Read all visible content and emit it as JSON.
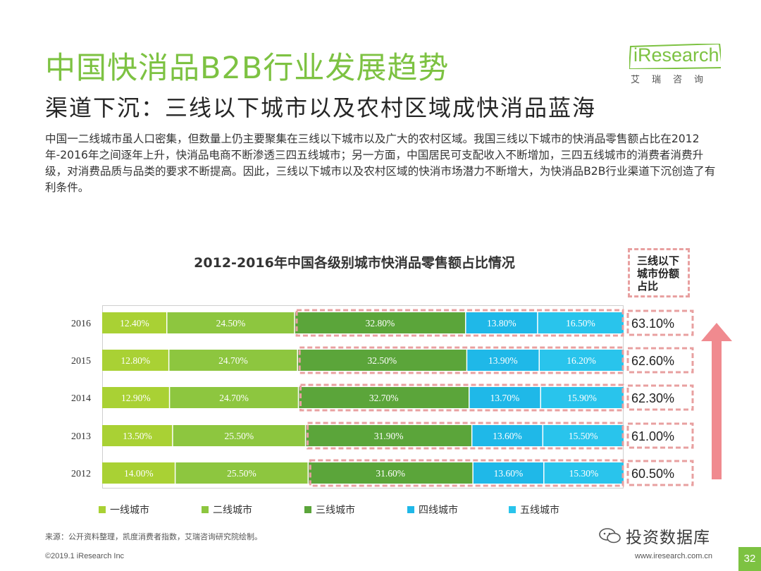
{
  "header": {
    "title": "中国快消品B2B行业发展趋势",
    "subtitle": "渠道下沉：三线以下城市以及农村区域成快消品蓝海",
    "intro": "中国一二线城市虽人口密集，但数量上仍主要聚集在三线以下城市以及广大的农村区域。我国三线以下城市的快消品零售额占比在2012年-2016年之间逐年上升，快消品电商不断渗透三四五线城市；另一方面，中国居民可支配收入不断增加，三四五线城市的消费者消费升级，对消费品质与品类的要求不断提高。因此，三线以下城市以及农村区域的快消市场潜力不断增大，为快消品B2B行业渠道下沉创造了有利条件。"
  },
  "logo": {
    "text": "iResearch",
    "cn": "艾瑞咨询"
  },
  "share_header": "三线以下城市份额占比",
  "colors": {
    "tier1": "#a9d134",
    "tier2": "#8dc63f",
    "tier3": "#5ba53a",
    "tier4": "#1fb8e8",
    "tier5": "#29c4ec",
    "accent": "#7dc242",
    "dash": "#e8a0a0",
    "arrow": "#f08a8f"
  },
  "chart_data": {
    "type": "bar",
    "orientation": "horizontal",
    "stacked": true,
    "percent": true,
    "title": "2012-2016年中国各级别城市快消品零售额占比情况",
    "categories": [
      "2016",
      "2015",
      "2014",
      "2013",
      "2012"
    ],
    "series": [
      {
        "name": "一线城市",
        "values": [
          12.4,
          12.8,
          12.9,
          13.5,
          14.0
        ],
        "labels": [
          "12.40%",
          "12.80%",
          "12.90%",
          "13.50%",
          "14.00%"
        ]
      },
      {
        "name": "二线城市",
        "values": [
          24.5,
          24.7,
          24.7,
          25.5,
          25.5
        ],
        "labels": [
          "24.50%",
          "24.70%",
          "24.70%",
          "25.50%",
          "25.50%"
        ]
      },
      {
        "name": "三线城市",
        "values": [
          32.8,
          32.5,
          32.7,
          31.9,
          31.6
        ],
        "labels": [
          "32.80%",
          "32.50%",
          "32.70%",
          "31.90%",
          "31.60%"
        ]
      },
      {
        "name": "四线城市",
        "values": [
          13.8,
          13.9,
          13.7,
          13.6,
          13.6
        ],
        "labels": [
          "13.80%",
          "13.90%",
          "13.70%",
          "13.60%",
          "13.60%"
        ]
      },
      {
        "name": "五线城市",
        "values": [
          16.5,
          16.2,
          15.9,
          15.5,
          15.3
        ],
        "labels": [
          "16.50%",
          "16.20%",
          "15.90%",
          "15.50%",
          "15.30%"
        ]
      }
    ],
    "share_below_tier3": {
      "values": [
        63.1,
        62.6,
        62.3,
        61.0,
        60.5
      ],
      "labels": [
        "63.10%",
        "62.60%",
        "62.30%",
        "61.00%",
        "60.50%"
      ]
    },
    "xlim": [
      0,
      100
    ],
    "legend": "bottom"
  },
  "footer": {
    "source": "来源：公开资料整理，凯度消费者指数，艾瑞咨询研究院绘制。",
    "copyright": "©2019.1 iResearch Inc",
    "website": "www.iresearch.com.cn",
    "page": "32",
    "watermark": "投资数据库"
  }
}
